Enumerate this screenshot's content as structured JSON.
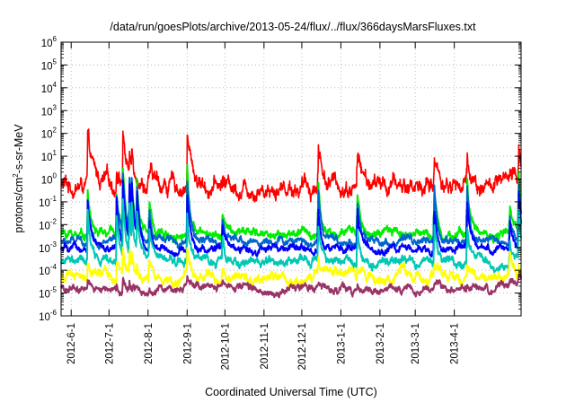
{
  "chart_data": {
    "type": "line",
    "title": "/data/run/goesPlots/archive/2013-05-24/flux/../flux/366daysMarsFluxes.txt",
    "xlabel": "Coordinated Universal Time (UTC)",
    "ylabel": "protons/cm²-s-sr-MeV",
    "ylabel_parts": {
      "base": "protons/cm",
      "sup": "2",
      "rest": "-s-sr-MeV"
    },
    "y_scale": "log",
    "ylim": [
      1e-06,
      1000000.0
    ],
    "y_ticks": [
      {
        "base": "10",
        "exp": "-6",
        "value": 1e-06
      },
      {
        "base": "10",
        "exp": "-5",
        "value": 1e-05
      },
      {
        "base": "10",
        "exp": "-4",
        "value": 0.0001
      },
      {
        "base": "10",
        "exp": "-3",
        "value": 0.001
      },
      {
        "base": "10",
        "exp": "-2",
        "value": 0.01
      },
      {
        "base": "10",
        "exp": "-1",
        "value": 0.1
      },
      {
        "base": "10",
        "exp": "0",
        "value": 1
      },
      {
        "base": "10",
        "exp": "1",
        "value": 10
      },
      {
        "base": "10",
        "exp": "2",
        "value": 100
      },
      {
        "base": "10",
        "exp": "3",
        "value": 1000
      },
      {
        "base": "10",
        "exp": "4",
        "value": 10000
      },
      {
        "base": "10",
        "exp": "5",
        "value": 100000
      },
      {
        "base": "10",
        "exp": "6",
        "value": 1000000
      }
    ],
    "xlim": [
      "2012-05-24",
      "2013-05-24"
    ],
    "x_ticks": [
      "2012-6-1",
      "2012-7-1",
      "2012-8-1",
      "2012-9-1",
      "2012-10-1",
      "2012-11-1",
      "2012-12-1",
      "2013-1-1",
      "2013-2-1",
      "2013-3-1",
      "2013-4-1"
    ],
    "grid": true,
    "event_dates": [
      "2012-06-14",
      "2012-07-07",
      "2012-07-12",
      "2012-07-17",
      "2012-07-19",
      "2012-07-23",
      "2012-08-02",
      "2012-09-01",
      "2012-09-29",
      "2012-12-14",
      "2013-01-14",
      "2013-03-16",
      "2013-04-11",
      "2013-05-15",
      "2013-05-22"
    ],
    "series": [
      {
        "color": "#ff0000",
        "baseline": 0.5,
        "noise": 0.35,
        "peaks": [
          2.0,
          1.0,
          2.4,
          1.3,
          1.5,
          1.0,
          0.6,
          2.3,
          0.3,
          1.9,
          1.5,
          1.4,
          1.3,
          0.3,
          1.9
        ]
      },
      {
        "color": "#00ee00",
        "baseline": 0.004,
        "noise": 0.18,
        "peaks": [
          2.0,
          1.8,
          2.7,
          2.7,
          2.6,
          2.6,
          1.5,
          3.2,
          1.0,
          2.3,
          1.8,
          2.0,
          2.7,
          1.2,
          2.9
        ]
      },
      {
        "color": "#0066cc",
        "baseline": 0.0018,
        "noise": 0.15,
        "peaks": [
          2.0,
          1.9,
          2.8,
          2.8,
          2.7,
          2.6,
          1.3,
          2.8,
          1.0,
          2.3,
          1.9,
          2.4,
          2.6,
          1.2,
          2.8
        ]
      },
      {
        "color": "#0000ff",
        "baseline": 0.0008,
        "noise": 0.15,
        "peaks": [
          2.3,
          2.2,
          3.0,
          3.0,
          2.9,
          2.6,
          1.3,
          2.5,
          1.0,
          2.0,
          1.9,
          2.1,
          2.2,
          1.2,
          2.8
        ]
      },
      {
        "color": "#00c8b4",
        "baseline": 0.00025,
        "noise": 0.18,
        "peaks": [
          2.2,
          2.2,
          2.9,
          2.9,
          2.8,
          2.5,
          1.4,
          2.3,
          0.9,
          1.6,
          1.6,
          1.8,
          1.6,
          1.2,
          2.3
        ]
      },
      {
        "color": "#ffff00",
        "baseline": 5e-05,
        "noise": 0.2,
        "peaks": [
          0.9,
          0.7,
          1.1,
          1.2,
          1.0,
          0.6,
          0.7,
          0.9,
          0.4,
          0.5,
          0.4,
          0.6,
          0.5,
          0.9,
          0.6
        ]
      },
      {
        "color": "#993366",
        "baseline": 1.5e-05,
        "noise": 0.15,
        "peaks": [
          0.3,
          0.2,
          0.6,
          0.4,
          0.3,
          0.2,
          0.2,
          0.3,
          0.2,
          0.2,
          0.2,
          0.2,
          0.3,
          0.3,
          0.4
        ]
      }
    ]
  }
}
